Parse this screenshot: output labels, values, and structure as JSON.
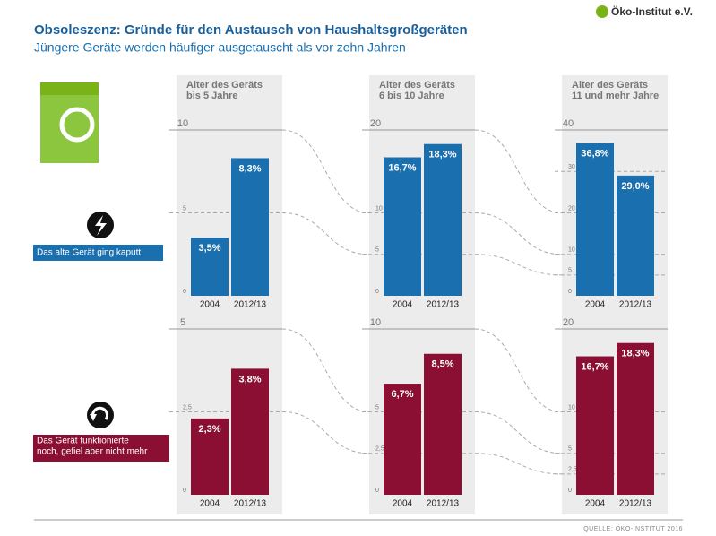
{
  "title": "Obsoleszenz: Gründe für den Austausch von Haushaltsgroßgeräten",
  "subtitle": "Jüngere Geräte werden häufiger ausgetauscht als vor zehn Jahren",
  "logo": "Öko-Institut e.V.",
  "source": "QUELLE: ÖKO-INSTITUT 2016",
  "columns": [
    [
      "Alter des Geräts",
      "bis 5 Jahre"
    ],
    [
      "Alter des Geräts",
      "6 bis 10 Jahre"
    ],
    [
      "Alter des Geräts",
      "11 und mehr Jahre"
    ]
  ],
  "rows": [
    [
      "Das alte Gerät ging kaputt"
    ],
    [
      "Das Gerät funktionierte",
      "noch, gefiel aber nicht mehr"
    ]
  ],
  "chart_data": [
    {
      "type": "bar",
      "color": "#1a6faf",
      "categories": [
        "2004",
        "2012/13"
      ],
      "values": [
        3.5,
        8.3
      ],
      "value_labels": [
        "3,5%",
        "8,3%"
      ],
      "ylim": [
        0,
        10
      ],
      "yticks": [
        0,
        5,
        10
      ]
    },
    {
      "type": "bar",
      "color": "#1a6faf",
      "categories": [
        "2004",
        "2012/13"
      ],
      "values": [
        16.7,
        18.3
      ],
      "value_labels": [
        "16,7%",
        "18,3%"
      ],
      "ylim": [
        0,
        20
      ],
      "yticks": [
        0,
        5,
        10,
        20
      ]
    },
    {
      "type": "bar",
      "color": "#1a6faf",
      "categories": [
        "2004",
        "2012/13"
      ],
      "values": [
        36.8,
        29.0
      ],
      "value_labels": [
        "36,8%",
        "29,0%"
      ],
      "ylim": [
        0,
        40
      ],
      "yticks": [
        0,
        5,
        10,
        20,
        30,
        40
      ]
    },
    {
      "type": "bar",
      "color": "#8b0f33",
      "categories": [
        "2004",
        "2012/13"
      ],
      "values": [
        2.3,
        3.8
      ],
      "value_labels": [
        "2,3%",
        "3,8%"
      ],
      "ylim": [
        0,
        5
      ],
      "yticks": [
        0,
        {
          "value": 2.5,
          "label": "2,5"
        },
        5
      ]
    },
    {
      "type": "bar",
      "color": "#8b0f33",
      "categories": [
        "2004",
        "2012/13"
      ],
      "values": [
        6.7,
        8.5
      ],
      "value_labels": [
        "6,7%",
        "8,5%"
      ],
      "ylim": [
        0,
        10
      ],
      "yticks": [
        0,
        {
          "value": 2.5,
          "label": "2,5"
        },
        5,
        10
      ]
    },
    {
      "type": "bar",
      "color": "#8b0f33",
      "categories": [
        "2004",
        "2012/13"
      ],
      "values": [
        16.7,
        18.3
      ],
      "value_labels": [
        "16,7%",
        "18,3%"
      ],
      "ylim": [
        0,
        20
      ],
      "yticks": [
        0,
        {
          "value": 2.5,
          "label": "2,5"
        },
        5,
        10,
        20
      ]
    }
  ]
}
